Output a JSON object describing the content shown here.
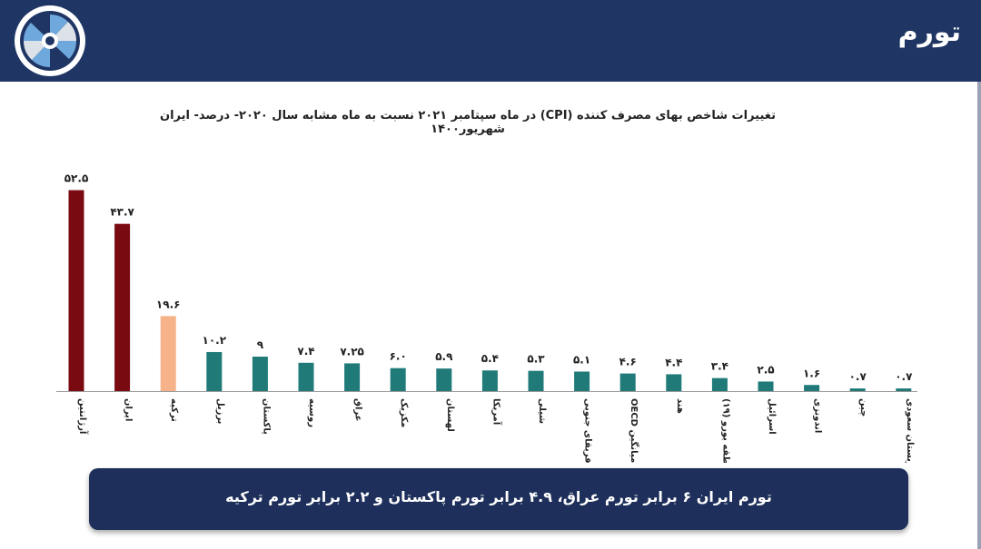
{
  "header": {
    "title": "تورم"
  },
  "colors": {
    "header_bg": "#1f3563",
    "bar_dark_red": "#7a0a12",
    "bar_peach": "#f6b389",
    "bar_teal": "#1f7a78",
    "footer_bg": "#1d2f5a"
  },
  "chart_data": {
    "type": "bar",
    "title": "تغییرات شاخص بهای مصرف کننده (CPI) در ماه سپتامبر ۲۰۲۱ نسبت به ماه مشابه سال ۲۰۲۰- درصد- ایران شهریور۱۴۰۰",
    "categories": [
      "آرژانتین",
      "ایران",
      "ترکیه",
      "برزیل",
      "پاکستان",
      "روسیه",
      "عراق",
      "مکزیک",
      "لهستان",
      "آمریکا",
      "شیلی",
      "آفریقای جنوبی",
      "OECD میانگین",
      "هند",
      "منطقه یورو (۱۹)",
      "اسرائیل",
      "اندونزی",
      "چین",
      "عربستان سعودی"
    ],
    "values": [
      52.5,
      43.7,
      19.6,
      10.2,
      9,
      7.4,
      7.25,
      6.0,
      5.9,
      5.4,
      5.3,
      5.1,
      4.6,
      4.4,
      3.4,
      2.5,
      1.6,
      0.7,
      0.7
    ],
    "value_labels": [
      "۵۲.۵",
      "۴۳.۷",
      "۱۹.۶",
      "۱۰.۲",
      "۹",
      "۷.۴",
      "۷.۲۵",
      "۶.۰",
      "۵.۹",
      "۵.۴",
      "۵.۳",
      "۵.۱",
      "۴.۶",
      "۴.۴",
      "۳.۴",
      "۲.۵",
      "۱.۶",
      "۰.۷",
      "۰.۷"
    ],
    "bar_colors": [
      "#7a0a12",
      "#7a0a12",
      "#f6b389",
      "#1f7a78",
      "#1f7a78",
      "#1f7a78",
      "#1f7a78",
      "#1f7a78",
      "#1f7a78",
      "#1f7a78",
      "#1f7a78",
      "#1f7a78",
      "#1f7a78",
      "#1f7a78",
      "#1f7a78",
      "#1f7a78",
      "#1f7a78",
      "#1f7a78",
      "#1f7a78"
    ],
    "ylim": [
      0,
      55
    ],
    "grid": false
  },
  "footer": {
    "text": "تورم ایران ۶ برابر تورم عراق، ۴.۹ برابر تورم پاکستان و ۲.۲ برابر تورم ترکیه"
  }
}
